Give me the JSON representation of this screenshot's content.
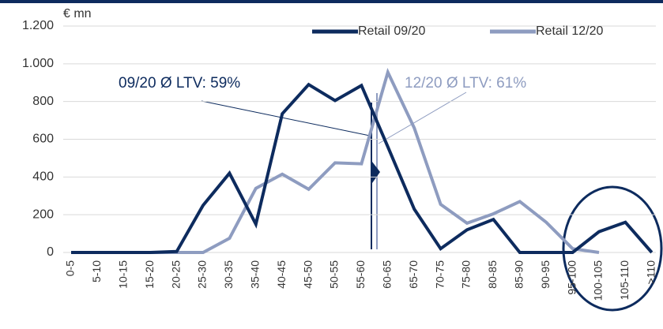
{
  "chart_data": {
    "type": "line",
    "unit_label": "€ mn",
    "categories": [
      "0-5",
      "5-10",
      "10-15",
      "15-20",
      "20-25",
      "25-30",
      "30-35",
      "35-40",
      "40-45",
      "45-50",
      "50-55",
      "55-60",
      "60-65",
      "65-70",
      "70-75",
      "75-80",
      "80-85",
      "85-90",
      "90-95",
      "95-100",
      "100-105",
      "105-110",
      ">110"
    ],
    "series": [
      {
        "name": "Retail 09/20",
        "color": "#0d2b5e",
        "values": [
          0,
          0,
          0,
          0,
          5,
          250,
          420,
          150,
          735,
          890,
          805,
          885,
          560,
          230,
          20,
          120,
          175,
          0,
          0,
          0,
          110,
          160,
          0
        ]
      },
      {
        "name": "Retail 12/20",
        "color": "#8e9cc0",
        "values": [
          0,
          0,
          0,
          0,
          0,
          0,
          75,
          340,
          415,
          335,
          475,
          470,
          955,
          660,
          255,
          155,
          205,
          270,
          160,
          20,
          0,
          null,
          null
        ]
      }
    ],
    "annotations": [
      "09/20 Ø LTV: 59%",
      "12/20 Ø LTV: 61%"
    ],
    "ylim": [
      0,
      1200
    ],
    "yticks": [
      0,
      200,
      400,
      600,
      800,
      {
        "value": 1000,
        "label": "1.000"
      },
      {
        "value": 1200,
        "label": "1.200"
      }
    ],
    "legend": "top-right"
  }
}
